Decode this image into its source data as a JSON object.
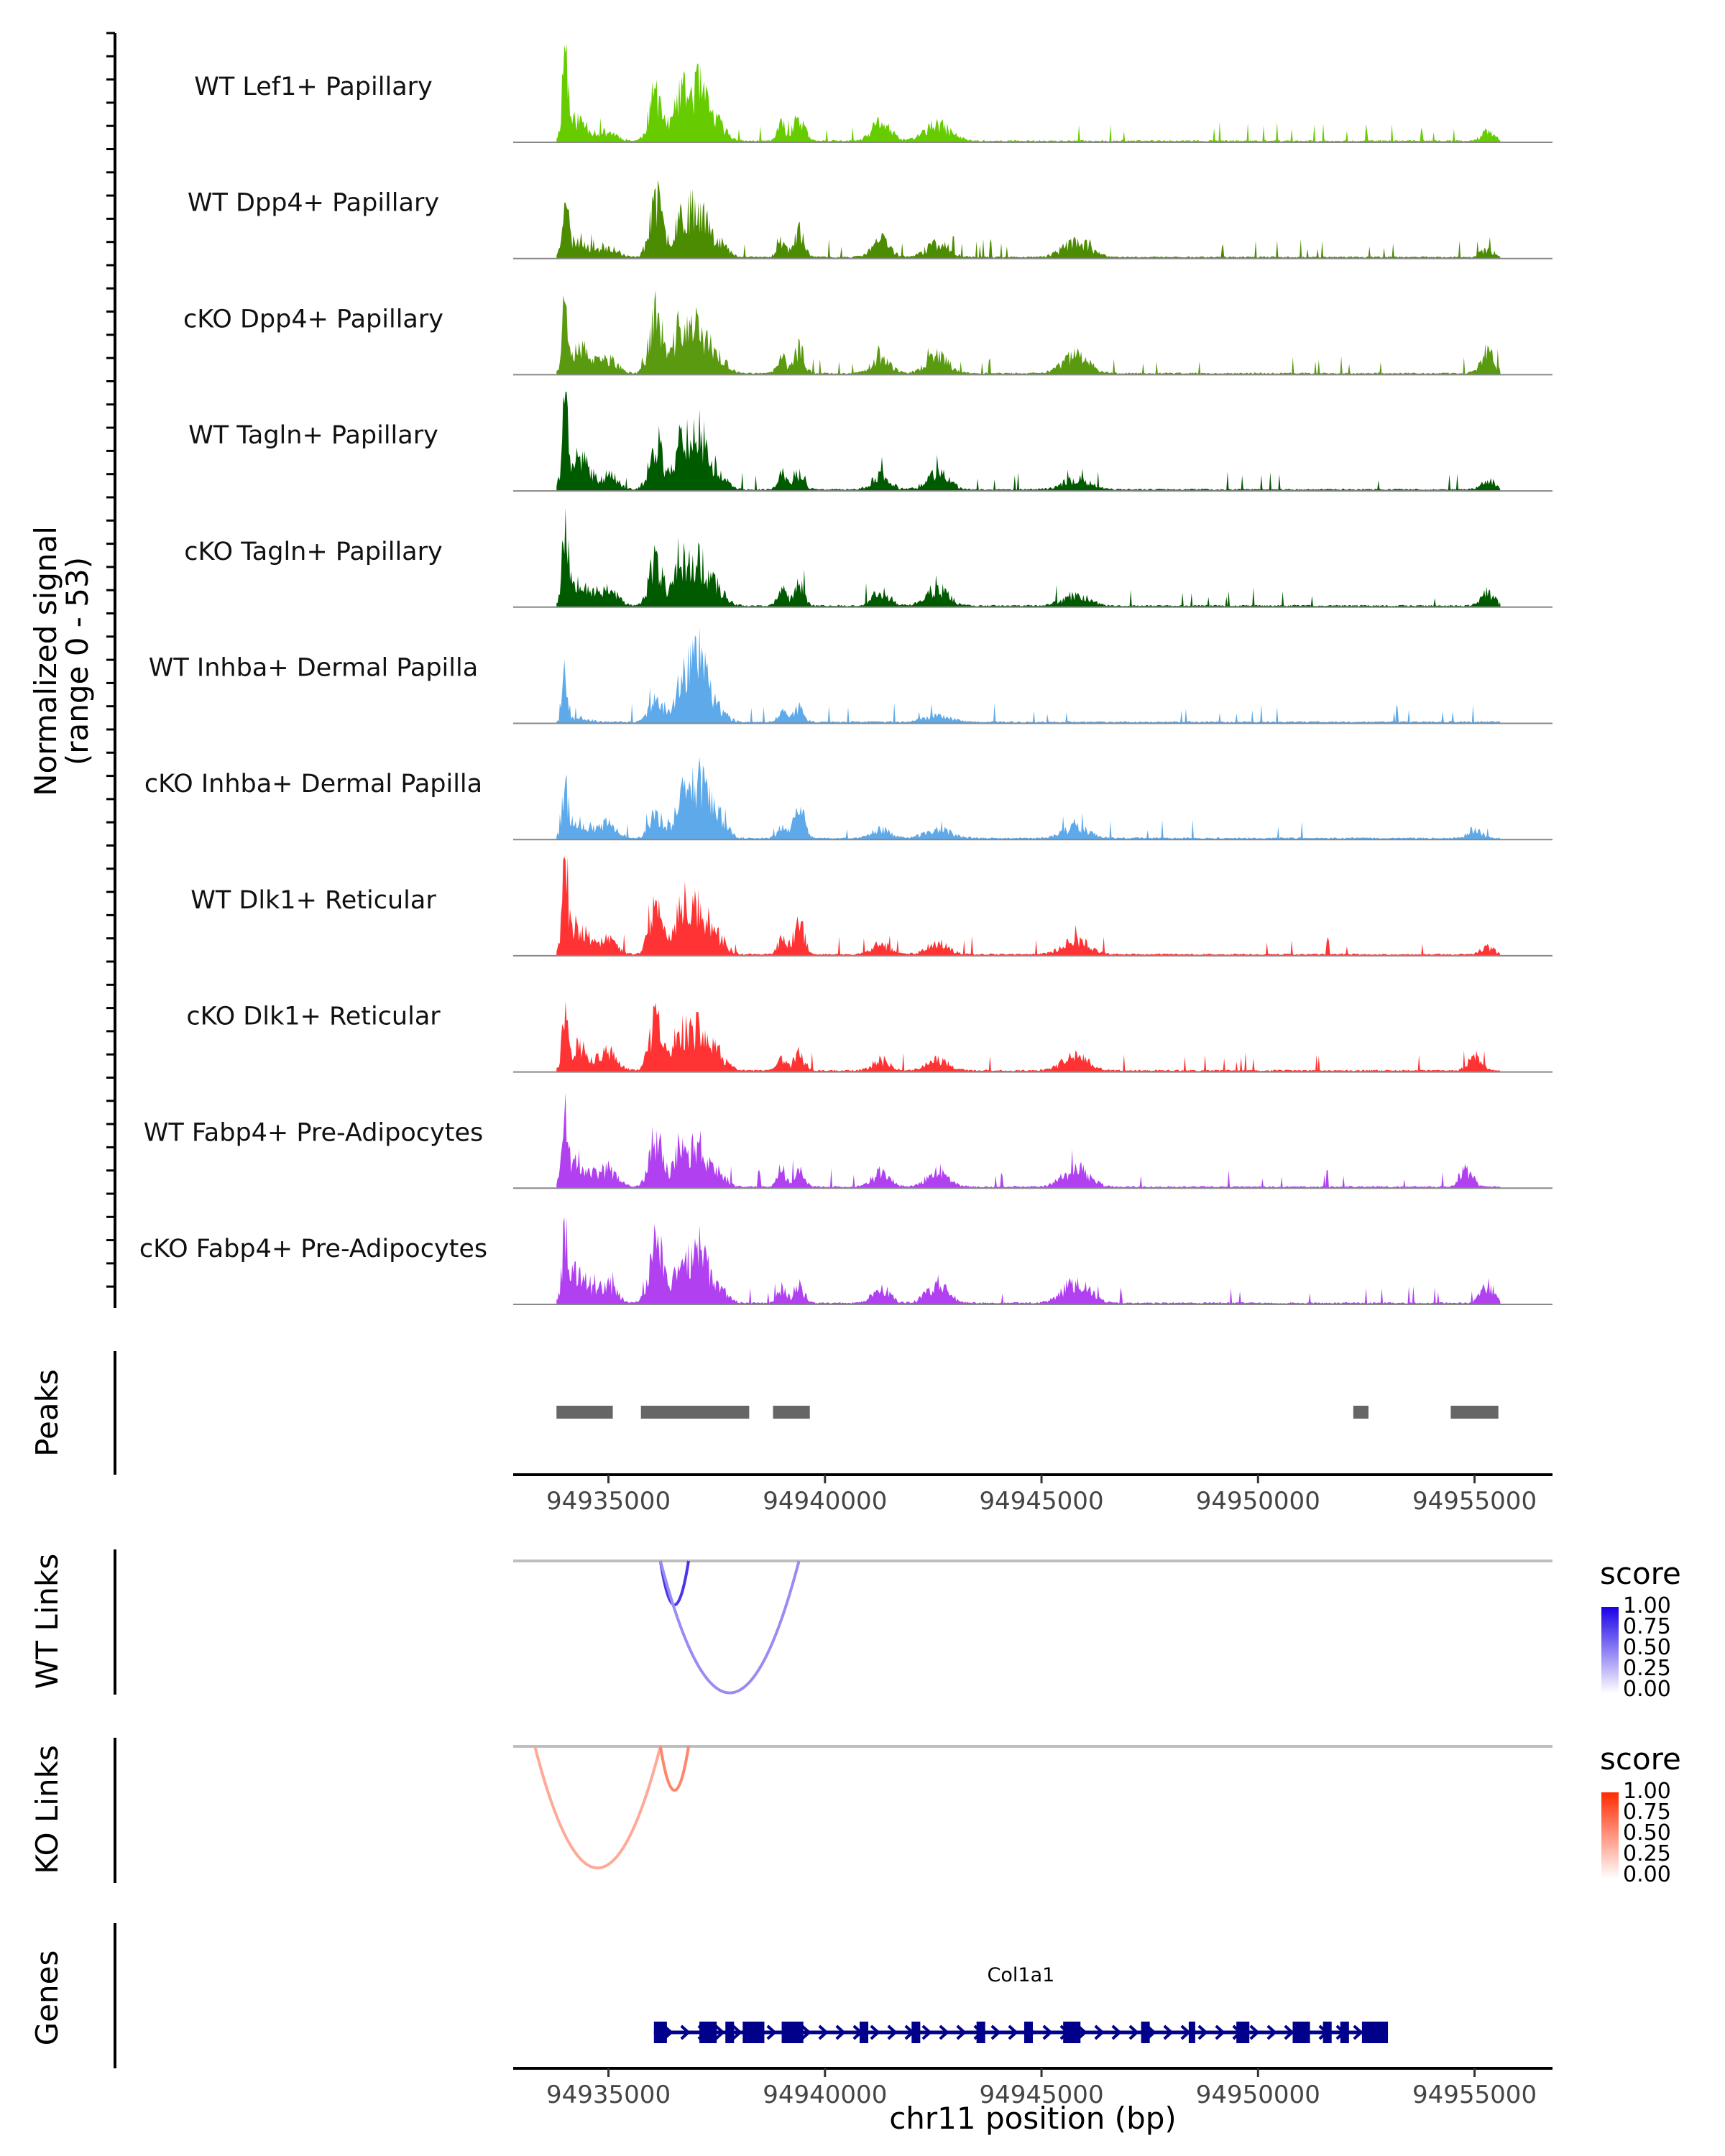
{
  "chart_data": {
    "type": "area",
    "title": "",
    "genome": "chr11",
    "region": [
      94932800,
      94956800
    ],
    "xlabel": "chr11 position (bp)",
    "coverage": {
      "ylabel_line1": "Normalized signal",
      "ylabel_line2": "(range 0 - 53)",
      "ylim": [
        0,
        53
      ],
      "signal_range": [
        94933800,
        94955600
      ],
      "series": [
        {
          "name": "WT Lef1+ Papillary",
          "color": "#66CC00",
          "seed": 11,
          "peaks": [
            [
              94934000,
              53,
              60
            ],
            [
              94934300,
              12,
              250
            ],
            [
              94935000,
              5,
              200
            ],
            [
              94936100,
              28,
              150
            ],
            [
              94936650,
              22,
              150
            ],
            [
              94937050,
              30,
              200
            ],
            [
              94937500,
              10,
              200
            ],
            [
              94939000,
              9,
              100
            ],
            [
              94939400,
              14,
              120
            ],
            [
              94941300,
              11,
              200
            ],
            [
              94942600,
              9,
              300
            ],
            [
              94955300,
              5,
              150
            ]
          ]
        },
        {
          "name": "WT Dpp4+ Papillary",
          "color": "#4C8C00",
          "seed": 23,
          "peaks": [
            [
              94934000,
              40,
              60
            ],
            [
              94934300,
              10,
              250
            ],
            [
              94935000,
              6,
              200
            ],
            [
              94936100,
              32,
              150
            ],
            [
              94936650,
              22,
              150
            ],
            [
              94937050,
              28,
              200
            ],
            [
              94937500,
              10,
              200
            ],
            [
              94939000,
              9,
              100
            ],
            [
              94939400,
              14,
              120
            ],
            [
              94941300,
              10,
              200
            ],
            [
              94942600,
              8,
              250
            ],
            [
              94945800,
              9,
              300
            ],
            [
              94955300,
              4,
              150
            ]
          ]
        },
        {
          "name": "cKO Dpp4+ Papillary",
          "color": "#5A9A10",
          "seed": 37,
          "peaks": [
            [
              94934000,
              40,
              60
            ],
            [
              94934300,
              15,
              250
            ],
            [
              94935000,
              8,
              200
            ],
            [
              94936100,
              34,
              150
            ],
            [
              94936650,
              24,
              150
            ],
            [
              94937050,
              25,
              200
            ],
            [
              94937500,
              10,
              200
            ],
            [
              94939000,
              9,
              100
            ],
            [
              94939400,
              14,
              120
            ],
            [
              94941300,
              10,
              200
            ],
            [
              94942600,
              10,
              250
            ],
            [
              94945800,
              10,
              300
            ],
            [
              94955300,
              12,
              150
            ]
          ]
        },
        {
          "name": "WT Tagln+ Papillary",
          "color": "#005A00",
          "seed": 41,
          "peaks": [
            [
              94934000,
              53,
              60
            ],
            [
              94934300,
              18,
              250
            ],
            [
              94935000,
              8,
              200
            ],
            [
              94936100,
              28,
              150
            ],
            [
              94936650,
              25,
              150
            ],
            [
              94937050,
              32,
              200
            ],
            [
              94937500,
              10,
              200
            ],
            [
              94939000,
              9,
              100
            ],
            [
              94939400,
              9,
              120
            ],
            [
              94941300,
              8,
              200
            ],
            [
              94942600,
              9,
              250
            ],
            [
              94945800,
              6,
              300
            ],
            [
              94955300,
              6,
              150
            ]
          ]
        },
        {
          "name": "cKO Tagln+ Papillary",
          "color": "#005A00",
          "seed": 53,
          "peaks": [
            [
              94934000,
              46,
              60
            ],
            [
              94934300,
              16,
              250
            ],
            [
              94935000,
              10,
              200
            ],
            [
              94936100,
              26,
              150
            ],
            [
              94936650,
              22,
              150
            ],
            [
              94937050,
              25,
              200
            ],
            [
              94937500,
              10,
              200
            ],
            [
              94939000,
              9,
              100
            ],
            [
              94939400,
              12,
              120
            ],
            [
              94941300,
              8,
              200
            ],
            [
              94942600,
              10,
              250
            ],
            [
              94945800,
              6,
              300
            ],
            [
              94955300,
              8,
              150
            ]
          ]
        },
        {
          "name": "WT Inhba+ Dermal Papilla",
          "color": "#5DA9E9",
          "seed": 67,
          "peaks": [
            [
              94934000,
              30,
              60
            ],
            [
              94934300,
              3,
              200
            ],
            [
              94936100,
              12,
              150
            ],
            [
              94936650,
              18,
              150
            ],
            [
              94937050,
              38,
              200
            ],
            [
              94937500,
              8,
              200
            ],
            [
              94939000,
              6,
              100
            ],
            [
              94939400,
              8,
              120
            ],
            [
              94942600,
              3,
              300
            ]
          ]
        },
        {
          "name": "cKO Inhba+ Dermal Papilla",
          "color": "#5DA9E9",
          "seed": 79,
          "peaks": [
            [
              94934000,
              30,
              60
            ],
            [
              94934300,
              10,
              250
            ],
            [
              94935000,
              8,
              200
            ],
            [
              94936100,
              14,
              150
            ],
            [
              94936650,
              18,
              150
            ],
            [
              94937050,
              32,
              200
            ],
            [
              94937500,
              14,
              200
            ],
            [
              94939000,
              6,
              100
            ],
            [
              94939400,
              18,
              120
            ],
            [
              94941300,
              5,
              200
            ],
            [
              94942600,
              5,
              300
            ],
            [
              94945800,
              6,
              300
            ],
            [
              94955000,
              5,
              150
            ]
          ]
        },
        {
          "name": "WT Dlk1+ Reticular",
          "color": "#FF3333",
          "seed": 83,
          "peaks": [
            [
              94934000,
              53,
              60
            ],
            [
              94934300,
              16,
              250
            ],
            [
              94935000,
              8,
              200
            ],
            [
              94936100,
              30,
              150
            ],
            [
              94936650,
              25,
              150
            ],
            [
              94937050,
              28,
              200
            ],
            [
              94937500,
              10,
              200
            ],
            [
              94939000,
              9,
              100
            ],
            [
              94939400,
              18,
              120
            ],
            [
              94941300,
              6,
              200
            ],
            [
              94942600,
              6,
              250
            ],
            [
              94945800,
              8,
              300
            ],
            [
              94955300,
              4,
              150
            ]
          ]
        },
        {
          "name": "cKO Dlk1+ Reticular",
          "color": "#FF3333",
          "seed": 97,
          "peaks": [
            [
              94934000,
              32,
              60
            ],
            [
              94934300,
              14,
              250
            ],
            [
              94935000,
              10,
              200
            ],
            [
              94936100,
              28,
              150
            ],
            [
              94936650,
              22,
              150
            ],
            [
              94937050,
              22,
              200
            ],
            [
              94937500,
              10,
              200
            ],
            [
              94939000,
              6,
              100
            ],
            [
              94939400,
              10,
              120
            ],
            [
              94941300,
              6,
              200
            ],
            [
              94942600,
              6,
              250
            ],
            [
              94945800,
              8,
              300
            ],
            [
              94955000,
              8,
              150
            ]
          ]
        },
        {
          "name": "WT Fabp4+ Pre-Adipocytes",
          "color": "#B040F0",
          "seed": 101,
          "peaks": [
            [
              94934000,
              34,
              60
            ],
            [
              94934300,
              15,
              250
            ],
            [
              94935000,
              10,
              200
            ],
            [
              94936100,
              28,
              150
            ],
            [
              94936650,
              20,
              150
            ],
            [
              94937050,
              22,
              200
            ],
            [
              94937500,
              8,
              200
            ],
            [
              94939000,
              10,
              100
            ],
            [
              94939400,
              10,
              120
            ],
            [
              94941300,
              8,
              200
            ],
            [
              94942600,
              8,
              250
            ],
            [
              94945800,
              10,
              300
            ],
            [
              94954800,
              10,
              150
            ]
          ]
        },
        {
          "name": "cKO Fabp4+ Pre-Adipocytes",
          "color": "#B040F0",
          "seed": 113,
          "peaks": [
            [
              94934000,
              32,
              60
            ],
            [
              94934300,
              18,
              250
            ],
            [
              94935000,
              10,
              200
            ],
            [
              94936100,
              37,
              150
            ],
            [
              94936650,
              20,
              150
            ],
            [
              94937050,
              30,
              200
            ],
            [
              94937500,
              10,
              200
            ],
            [
              94939000,
              8,
              100
            ],
            [
              94939400,
              10,
              120
            ],
            [
              94941300,
              8,
              200
            ],
            [
              94942600,
              10,
              250
            ],
            [
              94945800,
              12,
              300
            ],
            [
              94955300,
              10,
              150
            ]
          ]
        }
      ]
    },
    "peaks_track": {
      "label": "Peaks",
      "color": "#666666",
      "intervals": [
        [
          94933800,
          94935100
        ],
        [
          94935750,
          94938250
        ],
        [
          94938800,
          94939650
        ],
        [
          94952200,
          94952550
        ],
        [
          94954450,
          94955550
        ]
      ]
    },
    "x_axis": {
      "ticks": [
        94935000,
        94940000,
        94945000,
        94950000,
        94955000
      ],
      "tick_labels": [
        "94935000",
        "94940000",
        "94945000",
        "94950000",
        "94955000"
      ]
    },
    "wt_links": {
      "label": "WT Links",
      "links": [
        {
          "start": 94936200,
          "end": 94936850,
          "score": 0.75
        },
        {
          "start": 94936200,
          "end": 94939400,
          "score": 0.35
        }
      ],
      "legend": {
        "title": "score",
        "low_color": "#FFFFFF",
        "high_color": "#1A00E6",
        "labels": [
          "1.00",
          "0.75",
          "0.50",
          "0.25",
          "0.00"
        ]
      }
    },
    "ko_links": {
      "label": "KO Links",
      "links": [
        {
          "start": 94933300,
          "end": 94936200,
          "score": 0.3
        },
        {
          "start": 94936200,
          "end": 94936850,
          "score": 0.5
        }
      ],
      "legend": {
        "title": "score",
        "low_color": "#FFFFFF",
        "high_color": "#FF2A00",
        "labels": [
          "1.00",
          "0.75",
          "0.50",
          "0.25",
          "0.00"
        ]
      }
    },
    "genes_track": {
      "label": "Genes",
      "color": "#00008B",
      "genes": [
        {
          "name": "Col1a1",
          "start": 94936050,
          "end": 94953000,
          "strand": "+"
        }
      ],
      "exons": [
        [
          94936050,
          94936350
        ],
        [
          94937100,
          94937500
        ],
        [
          94938100,
          94938600
        ],
        [
          94939000,
          94939500
        ],
        [
          94940800,
          94941000
        ],
        [
          94942000,
          94942200
        ],
        [
          94943500,
          94943700
        ],
        [
          94945500,
          94945900
        ],
        [
          94947300,
          94947500
        ],
        [
          94949500,
          94949800
        ],
        [
          94950800,
          94951200
        ],
        [
          94951500,
          94951700
        ],
        [
          94951900,
          94952100
        ],
        [
          94952400,
          94953000
        ],
        [
          94937700,
          94937900
        ],
        [
          94944600,
          94944800
        ],
        [
          94948400,
          94948550
        ]
      ]
    }
  }
}
